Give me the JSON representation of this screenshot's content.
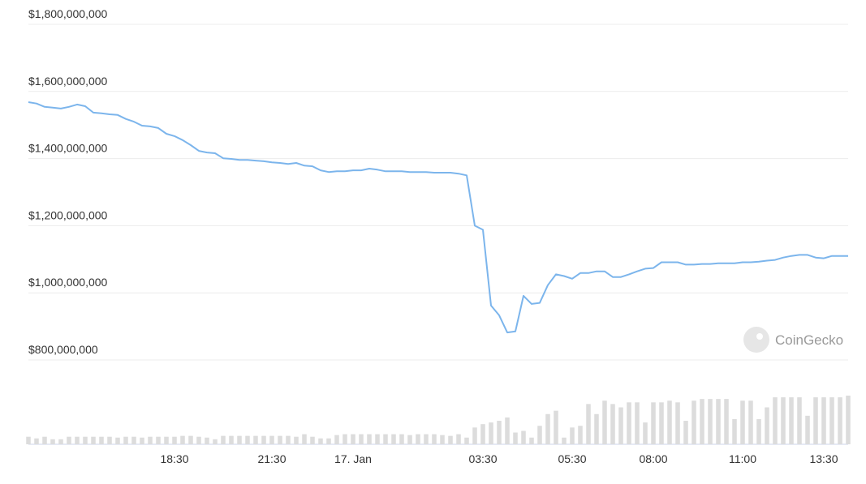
{
  "chart_data": {
    "type": "line",
    "color": "#7cb5ec",
    "grid": true,
    "watermark": "CoinGecko",
    "ylim": [
      800000000,
      1800000000
    ],
    "yticks": [
      {
        "value": 800000000,
        "label": "$800,000,000"
      },
      {
        "value": 1000000000,
        "label": "$1,000,000,000"
      },
      {
        "value": 1200000000,
        "label": "$1,200,000,000"
      },
      {
        "value": 1400000000,
        "label": "$1,400,000,000"
      },
      {
        "value": 1600000000,
        "label": "$1,600,000,000"
      },
      {
        "value": 1800000000,
        "label": "$1,800,000,000"
      }
    ],
    "categories": [
      null,
      null,
      null,
      null,
      null,
      null,
      null,
      null,
      null,
      null,
      null,
      null,
      null,
      null,
      null,
      null,
      null,
      null,
      "18:30",
      null,
      null,
      null,
      null,
      null,
      null,
      null,
      null,
      null,
      null,
      null,
      "21:30",
      null,
      null,
      null,
      null,
      null,
      null,
      null,
      null,
      null,
      "17. Jan",
      null,
      null,
      null,
      null,
      null,
      null,
      null,
      null,
      null,
      null,
      null,
      null,
      null,
      null,
      null,
      "03:30",
      null,
      null,
      null,
      null,
      null,
      null,
      null,
      null,
      null,
      null,
      "05:30",
      null,
      null,
      null,
      null,
      null,
      null,
      null,
      null,
      null,
      "08:00",
      null,
      null,
      null,
      null,
      null,
      null,
      null,
      null,
      null,
      null,
      "11:00",
      null,
      null,
      null,
      null,
      null,
      null,
      null,
      null,
      null,
      "13:30",
      null,
      null,
      null
    ],
    "values": [
      1568000000,
      1564000000,
      1554000000,
      1552000000,
      1549000000,
      1554000000,
      1561000000,
      1556000000,
      1537000000,
      1535000000,
      1532000000,
      1530000000,
      1518000000,
      1510000000,
      1498000000,
      1496000000,
      1491000000,
      1474000000,
      1467000000,
      1455000000,
      1440000000,
      1423000000,
      1418000000,
      1416000000,
      1401000000,
      1399000000,
      1396000000,
      1396000000,
      1394000000,
      1392000000,
      1389000000,
      1387000000,
      1384000000,
      1387000000,
      1379000000,
      1377000000,
      1365000000,
      1360000000,
      1362000000,
      1362000000,
      1365000000,
      1365000000,
      1370000000,
      1367000000,
      1362000000,
      1362000000,
      1362000000,
      1360000000,
      1360000000,
      1360000000,
      1358000000,
      1358000000,
      1358000000,
      1355000000,
      1350000000,
      1200000000,
      1188000000,
      962000000,
      933000000,
      882000000,
      885000000,
      991000000,
      967000000,
      970000000,
      1023000000,
      1055000000,
      1050000000,
      1042000000,
      1059000000,
      1059000000,
      1064000000,
      1064000000,
      1047000000,
      1047000000,
      1055000000,
      1064000000,
      1072000000,
      1074000000,
      1091000000,
      1091000000,
      1091000000,
      1084000000,
      1084000000,
      1086000000,
      1086000000,
      1088000000,
      1088000000,
      1088000000,
      1091000000,
      1091000000,
      1093000000,
      1096000000,
      1098000000,
      1105000000,
      1110000000,
      1113000000,
      1113000000,
      1105000000,
      1103000000,
      1110000000,
      1110000000,
      1110000000
    ],
    "volume": {
      "color": "#dcdcdc",
      "values": [
        9,
        7,
        9,
        6,
        6,
        9,
        9,
        9,
        9,
        9,
        9,
        8,
        9,
        9,
        8,
        9,
        9,
        9,
        9,
        10,
        10,
        9,
        8,
        6,
        10,
        10,
        10,
        10,
        10,
        10,
        10,
        10,
        10,
        9,
        12,
        9,
        7,
        7,
        11,
        12,
        12,
        12,
        12,
        12,
        12,
        12,
        12,
        11,
        12,
        12,
        12,
        11,
        10,
        12,
        8,
        20,
        24,
        26,
        28,
        32,
        14,
        16,
        8,
        22,
        36,
        40,
        8,
        20,
        22,
        48,
        36,
        52,
        48,
        44,
        50,
        50,
        26,
        50,
        50,
        52,
        50,
        28,
        52,
        54,
        54,
        54,
        54,
        30,
        52,
        52,
        30,
        44,
        56,
        56,
        56,
        56,
        34,
        56,
        56,
        56,
        56,
        58
      ]
    }
  }
}
